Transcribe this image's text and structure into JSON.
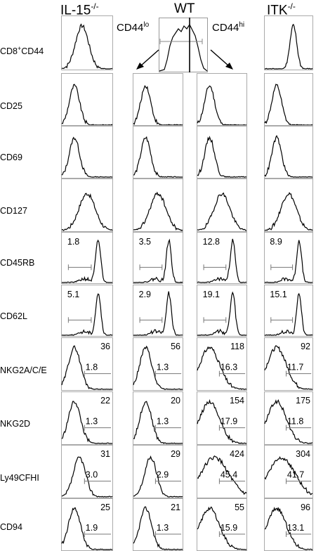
{
  "columns": {
    "il15": {
      "main": "IL-15",
      "sup": "-/-"
    },
    "wt": {
      "main": "WT"
    },
    "itk": {
      "main": "ITK",
      "sup": "-/-"
    }
  },
  "subcolumns": {
    "lo": {
      "main": "CD44",
      "sup": "lo"
    },
    "hi": {
      "main": "CD44",
      "sup": "hi"
    }
  },
  "rows": {
    "cd8cd44": {
      "pre": "CD8",
      "sup": "+",
      "post": "CD44"
    },
    "cd25": "CD25",
    "cd69": "CD69",
    "cd127": "CD127",
    "cd45rb": "CD45RB",
    "cd62l": "CD62L",
    "nkg2ace": "NKG2A/C/E",
    "nkg2d": "NKG2D",
    "ly49": "Ly49CFHI",
    "cd94": "CD94"
  },
  "values": {
    "cd45rb": {
      "il15": "1.8",
      "lo": "3.5",
      "hi": "12.8",
      "itk": "8.9"
    },
    "cd62l": {
      "il15": "5.1",
      "lo": "2.9",
      "hi": "19.1",
      "itk": "15.1"
    },
    "nkg2ace": {
      "il15": {
        "mfi": "36",
        "pct": "1.8"
      },
      "lo": {
        "mfi": "56",
        "pct": "1.3"
      },
      "hi": {
        "mfi": "118",
        "pct": "16.3"
      },
      "itk": {
        "mfi": "92",
        "pct": "11.7"
      }
    },
    "nkg2d": {
      "il15": {
        "mfi": "22",
        "pct": "1.3"
      },
      "lo": {
        "mfi": "20",
        "pct": "1.3"
      },
      "hi": {
        "mfi": "154",
        "pct": "17.9"
      },
      "itk": {
        "mfi": "175",
        "pct": "11.8"
      }
    },
    "ly49": {
      "il15": {
        "mfi": "31",
        "pct": "3.0"
      },
      "lo": {
        "mfi": "29",
        "pct": "2.9"
      },
      "hi": {
        "mfi": "424",
        "pct": "45.4"
      },
      "itk": {
        "mfi": "304",
        "pct": "41.7"
      }
    },
    "cd94": {
      "il15": {
        "mfi": "25",
        "pct": "1.9"
      },
      "lo": {
        "mfi": "21",
        "pct": "1.3"
      },
      "hi": {
        "mfi": "55",
        "pct": "15.9"
      },
      "itk": {
        "mfi": "96",
        "pct": "13.1"
      }
    }
  }
}
